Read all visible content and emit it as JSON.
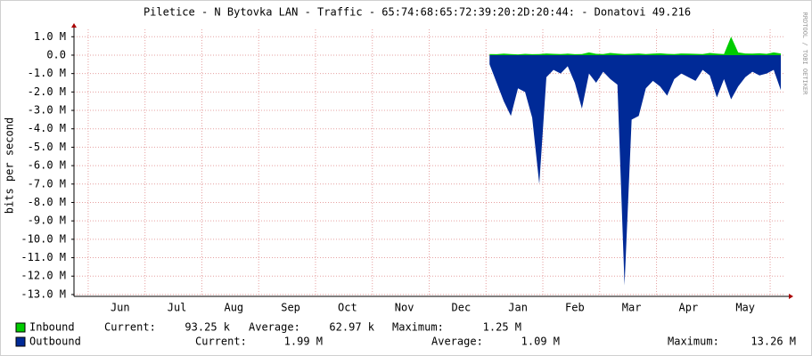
{
  "chart_data": {
    "type": "area",
    "title": "Piletice - N Bytovka LAN - Traffic - 65:74:68:65:72:39:20:2D:20:44: - Donatovi 49.216",
    "y_label": "bits per second",
    "watermark": "RRDTOOL / TOBI OETIKER",
    "ylim": [
      -13100000,
      1400000
    ],
    "yticks": [
      {
        "value": 1000000,
        "label": "1.0 M"
      },
      {
        "value": 0,
        "label": "0.0"
      },
      {
        "value": -1000000,
        "label": "-1.0 M"
      },
      {
        "value": -2000000,
        "label": "-2.0 M"
      },
      {
        "value": -3000000,
        "label": "-3.0 M"
      },
      {
        "value": -4000000,
        "label": "-4.0 M"
      },
      {
        "value": -5000000,
        "label": "-5.0 M"
      },
      {
        "value": -6000000,
        "label": "-6.0 M"
      },
      {
        "value": -7000000,
        "label": "-7.0 M"
      },
      {
        "value": -8000000,
        "label": "-8.0 M"
      },
      {
        "value": -9000000,
        "label": "-9.0 M"
      },
      {
        "value": -10000000,
        "label": "-10.0 M"
      },
      {
        "value": -11000000,
        "label": "-11.0 M"
      },
      {
        "value": -12000000,
        "label": "-12.0 M"
      },
      {
        "value": -13000000,
        "label": "-13.0 M"
      }
    ],
    "grid": true,
    "categories": [
      null,
      null,
      null,
      null,
      null,
      null,
      "Jun",
      null,
      null,
      null,
      null,
      null,
      null,
      null,
      "Jul",
      null,
      null,
      null,
      null,
      null,
      null,
      null,
      "Aug",
      null,
      null,
      null,
      null,
      null,
      null,
      null,
      "Sep",
      null,
      null,
      null,
      null,
      null,
      null,
      null,
      "Oct",
      null,
      null,
      null,
      null,
      null,
      null,
      null,
      "Nov",
      null,
      null,
      null,
      null,
      null,
      null,
      null,
      "Dec",
      null,
      null,
      null,
      null,
      null,
      null,
      null,
      "Jan",
      null,
      null,
      null,
      null,
      null,
      null,
      null,
      "Feb",
      null,
      null,
      null,
      null,
      null,
      null,
      null,
      "Mar",
      null,
      null,
      null,
      null,
      null,
      null,
      null,
      "Apr",
      null,
      null,
      null,
      null,
      null,
      null,
      null,
      "May",
      null,
      null,
      null,
      null,
      null
    ],
    "legend_labels": [
      "Current:",
      "Average:",
      "Maximum:"
    ],
    "series": [
      {
        "name": "Outbound",
        "color": "#002a97",
        "stats": [
          "1.99 M",
          "1.09 M",
          "13.26 M"
        ],
        "values": [
          null,
          null,
          null,
          null,
          null,
          null,
          null,
          null,
          null,
          null,
          null,
          null,
          null,
          null,
          null,
          null,
          null,
          null,
          null,
          null,
          null,
          null,
          null,
          null,
          null,
          null,
          null,
          null,
          null,
          null,
          null,
          null,
          null,
          null,
          null,
          null,
          null,
          null,
          null,
          null,
          null,
          null,
          null,
          null,
          null,
          null,
          null,
          null,
          null,
          null,
          null,
          null,
          null,
          null,
          null,
          null,
          null,
          null,
          -500000,
          -1500000,
          -2500000,
          -3300000,
          -1800000,
          -2000000,
          -3400000,
          -7000000,
          -1200000,
          -800000,
          -1000000,
          -600000,
          -1500000,
          -2900000,
          -1000000,
          -1500000,
          -900000,
          -1300000,
          -1600000,
          -12500000,
          -3500000,
          -3300000,
          -1800000,
          -1400000,
          -1700000,
          -2200000,
          -1300000,
          -1000000,
          -1200000,
          -1400000,
          -800000,
          -1100000,
          -2300000,
          -1300000,
          -2400000,
          -1700000,
          -1200000,
          -900000,
          -1100000,
          -1000000,
          -800000,
          -1900000
        ]
      },
      {
        "name": "Inbound",
        "color": "#00cc00",
        "stats": [
          "93.25 k",
          "62.97 k",
          "1.25 M"
        ],
        "values": [
          null,
          null,
          null,
          null,
          null,
          null,
          null,
          null,
          null,
          null,
          null,
          null,
          null,
          null,
          null,
          null,
          null,
          null,
          null,
          null,
          null,
          null,
          null,
          null,
          null,
          null,
          null,
          null,
          null,
          null,
          null,
          null,
          null,
          null,
          null,
          null,
          null,
          null,
          null,
          null,
          null,
          null,
          null,
          null,
          null,
          null,
          null,
          null,
          null,
          null,
          null,
          null,
          null,
          null,
          null,
          null,
          null,
          null,
          60000,
          50000,
          80000,
          60000,
          40000,
          70000,
          50000,
          60000,
          90000,
          70000,
          60000,
          80000,
          50000,
          60000,
          150000,
          70000,
          60000,
          120000,
          80000,
          60000,
          70000,
          90000,
          60000,
          80000,
          100000,
          70000,
          60000,
          90000,
          80000,
          70000,
          60000,
          120000,
          80000,
          60000,
          1000000,
          150000,
          90000,
          80000,
          100000,
          70000,
          150000,
          90000
        ]
      }
    ]
  }
}
